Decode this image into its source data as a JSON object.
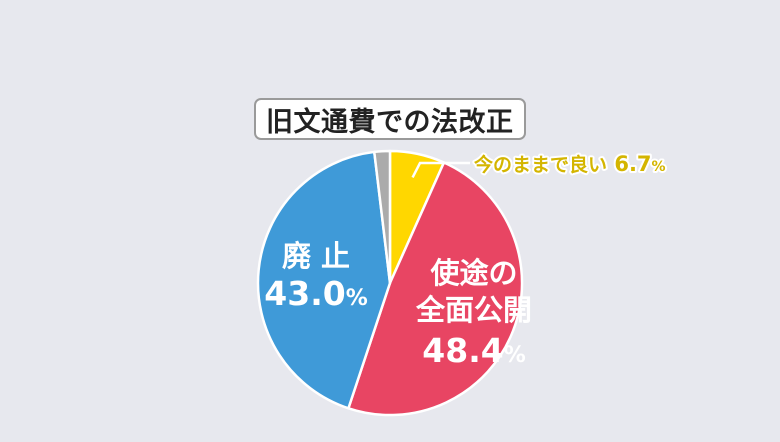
{
  "title": "旧文通費での法改正",
  "colors": {
    "background": "#e7e8ee",
    "outline": "#ffffff",
    "leader_line": "#ffffff",
    "label_callout_text": "#d4b500"
  },
  "chart_data": {
    "type": "pie",
    "title": "旧文通費での法改正",
    "slices": [
      {
        "label": "今のままで良い",
        "value": 6.7,
        "value_text": "6.7",
        "unit": "%",
        "color": "#ffd700",
        "label_color": "#d4b500"
      },
      {
        "label": "使途の\n全面公開",
        "value": 48.4,
        "value_text": "48.4",
        "unit": "%",
        "color": "#e84563",
        "label_color": "#ffffff"
      },
      {
        "label": "廃 止",
        "value": 43.0,
        "value_text": "43.0",
        "unit": "%",
        "color": "#3f9ad8",
        "label_color": "#ffffff"
      },
      {
        "label": "",
        "value": 1.9,
        "value_text": "",
        "unit": "",
        "color": "#ababab",
        "label_color": "#ffffff"
      }
    ],
    "start_angle_deg": 0,
    "direction": "clockwise",
    "legend": "none"
  }
}
